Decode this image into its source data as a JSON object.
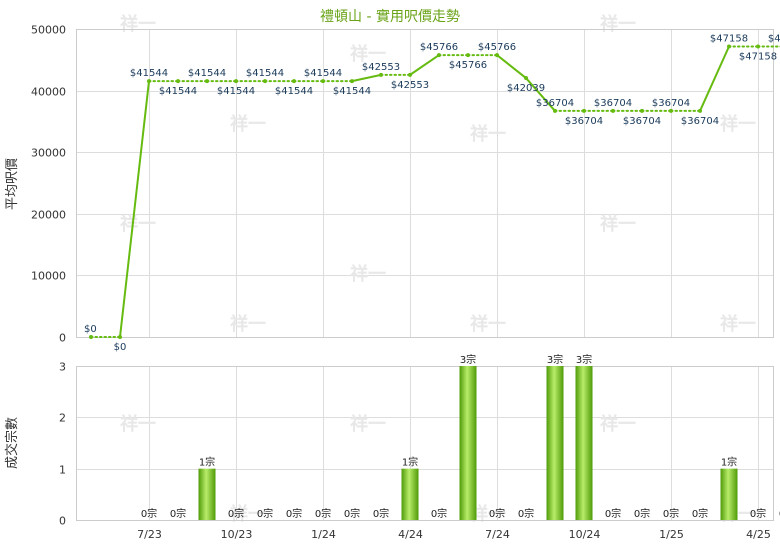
{
  "chart_data": [
    {
      "type": "line",
      "title": "禮頓山 - 實用呎價走勢",
      "ylabel": "平均呎價",
      "ylim": [
        0,
        50000
      ],
      "yticks": [
        0,
        10000,
        20000,
        30000,
        40000,
        50000
      ],
      "grid": true,
      "color": "#66bb11",
      "series": [
        {
          "values": [
            0,
            0,
            41544,
            41544,
            41544,
            41544,
            41544,
            41544,
            41544,
            41544,
            42553,
            42553,
            45766,
            45766,
            45766,
            42039,
            36704,
            36704,
            36704,
            36704,
            36704,
            36704,
            47158,
            47158,
            47158,
            47158
          ],
          "labels": [
            "$0",
            "$0",
            "$41544",
            "$41544",
            "$41544",
            "$41544",
            "$41544",
            "$41544",
            "$41544",
            "$41544",
            "$42553",
            "$42553",
            "$45766",
            "$45766",
            "$45766",
            "$42039",
            "$36704",
            "$36704",
            "$36704",
            "$36704",
            "$36704",
            "$36704",
            "$47158",
            "$47158",
            "$47158",
            "$47158"
          ]
        }
      ]
    },
    {
      "type": "bar",
      "ylabel": "成交宗數",
      "ylim": [
        0,
        3
      ],
      "yticks": [
        0,
        1,
        2,
        3
      ],
      "grid": true,
      "color": "#66bb11",
      "x_tick_labels": [
        "7/23",
        "10/23",
        "1/24",
        "4/24",
        "7/24",
        "10/24",
        "1/25",
        "4/25"
      ],
      "values": [
        0,
        0,
        1,
        0,
        0,
        0,
        0,
        0,
        0,
        1,
        0,
        3,
        0,
        0,
        3,
        3,
        0,
        0,
        0,
        0,
        1,
        0,
        0,
        0
      ],
      "labels": [
        "0宗",
        "0宗",
        "1宗",
        "0宗",
        "0宗",
        "0宗",
        "0宗",
        "0宗",
        "0宗",
        "1宗",
        "0宗",
        "3宗",
        "0宗",
        "0宗",
        "3宗",
        "3宗",
        "0宗",
        "0宗",
        "0宗",
        "0宗",
        "1宗",
        "0宗",
        "0宗",
        "0宗"
      ]
    }
  ],
  "watermark_text": "祥一"
}
